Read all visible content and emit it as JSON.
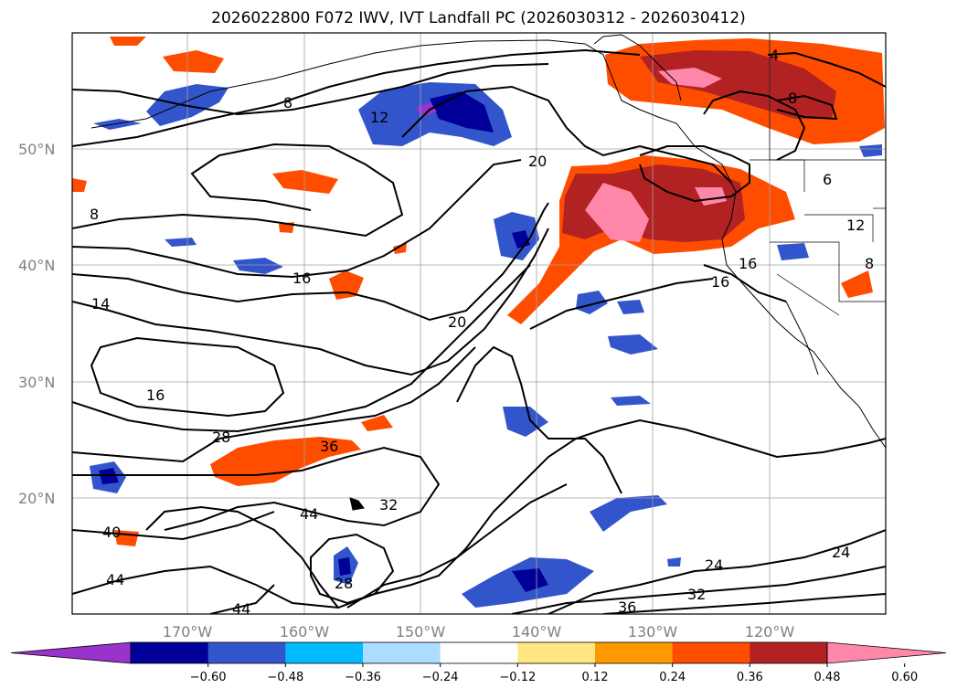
{
  "title": "2026022800 F072 IWV, IVT Landfall PC (2026030312 - 2026030412)",
  "lat_labels": [
    "50°N",
    "40°N",
    "30°N",
    "20°N"
  ],
  "lon_labels": [
    "170°W",
    "160°W",
    "150°W",
    "140°W",
    "130°W",
    "120°W"
  ],
  "colorbar": {
    "ticks": [
      "−0.60",
      "−0.48",
      "−0.36",
      "−0.24",
      "−0.12",
      "0.12",
      "0.24",
      "0.36",
      "0.48",
      "0.60"
    ],
    "colors": [
      "#9933cc",
      "#000099",
      "#3355cc",
      "#00bbff",
      "#aaddff",
      "#ffffff",
      "#ffe680",
      "#ff9900",
      "#ff4d00",
      "#b22222",
      "#ff88aa"
    ]
  },
  "contour_labels": [
    "4",
    "8",
    "8",
    "12",
    "20",
    "8",
    "12",
    "6",
    "16",
    "16",
    "8",
    "14",
    "16",
    "20",
    "16",
    "28",
    "36",
    "44",
    "32",
    "40",
    "44",
    "28",
    "44",
    "24",
    "32",
    "36",
    "24"
  ]
}
